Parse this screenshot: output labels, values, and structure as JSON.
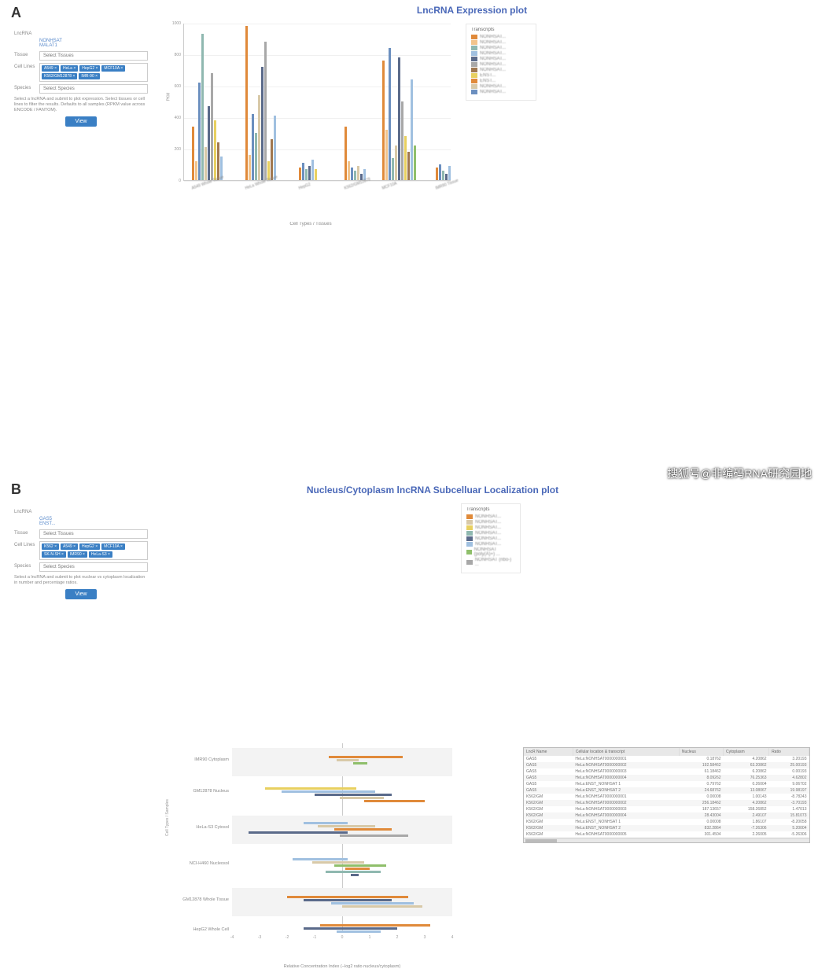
{
  "palette": {
    "orange": "#e08a3a",
    "lightorange": "#f2c48c",
    "blue": "#6b8fbf",
    "teal": "#8fb8b0",
    "beige": "#d8c9a8",
    "navy": "#5a6a8a",
    "gray": "#a8a8a8",
    "yellow": "#e8d060",
    "brown": "#a07850",
    "sky": "#a0c0e0",
    "green": "#8fbf6b",
    "legend_border": "#e8e8e8"
  },
  "panelA": {
    "label": "A",
    "title": "LncRNA Expression plot",
    "sidebar": {
      "lncrna_label": "LncRNA",
      "lncrna_links": [
        "NONHSAT",
        "MALAT1"
      ],
      "tissue_label": "Tissue",
      "tissue_placeholder": "Select Tissues",
      "chips_label": "Cell Lines",
      "chips": [
        "A549 ×",
        "HeLa ×",
        "HepG2 ×",
        "MCF10A ×",
        "K562/GM12878 ×",
        "IMR-90 ×"
      ],
      "species_label": "Species",
      "species_placeholder": "Select Species",
      "note": "Select a lncRNA and submit to plot expression. Select tissues or cell lines to filter the results. Defaults to all samples (RPKM value across ENCODE / FANTOM).",
      "button": "View"
    },
    "chart": {
      "type": "bar",
      "ylabel": "PKM",
      "yticks": [
        0,
        200,
        400,
        600,
        800,
        1000
      ],
      "ymax": 1000,
      "xaxis_title": "Cell Types / Tissues",
      "categories": [
        "A549 Whole Tissue",
        "HeLa Whole Tissue",
        "HepG2",
        "K562/GM12878",
        "MCF10A",
        "IMR90 Tissue"
      ],
      "groups": [
        {
          "x": 10,
          "bars": [
            [
              "orange",
              340
            ],
            [
              "lightorange",
              120
            ],
            [
              "blue",
              620
            ],
            [
              "teal",
              930
            ],
            [
              "beige",
              210
            ],
            [
              "navy",
              470
            ],
            [
              "gray",
              680
            ],
            [
              "yellow",
              380
            ],
            [
              "brown",
              240
            ],
            [
              "sky",
              150
            ]
          ]
        },
        {
          "x": 78,
          "bars": [
            [
              "orange",
              980
            ],
            [
              "lightorange",
              160
            ],
            [
              "blue",
              420
            ],
            [
              "teal",
              300
            ],
            [
              "beige",
              540
            ],
            [
              "navy",
              720
            ],
            [
              "gray",
              880
            ],
            [
              "yellow",
              120
            ],
            [
              "brown",
              260
            ],
            [
              "sky",
              410
            ]
          ]
        },
        {
          "x": 146,
          "bars": [
            [
              "orange",
              80
            ],
            [
              "blue",
              110
            ],
            [
              "teal",
              70
            ],
            [
              "navy",
              90
            ],
            [
              "sky",
              130
            ],
            [
              "yellow",
              70
            ]
          ]
        },
        {
          "x": 204,
          "bars": [
            [
              "orange",
              340
            ],
            [
              "lightorange",
              120
            ],
            [
              "blue",
              80
            ],
            [
              "teal",
              60
            ],
            [
              "beige",
              90
            ],
            [
              "navy",
              40
            ],
            [
              "sky",
              70
            ]
          ]
        },
        {
          "x": 252,
          "bars": [
            [
              "orange",
              760
            ],
            [
              "lightorange",
              320
            ],
            [
              "blue",
              840
            ],
            [
              "teal",
              140
            ],
            [
              "beige",
              220
            ],
            [
              "navy",
              780
            ],
            [
              "gray",
              500
            ],
            [
              "yellow",
              280
            ],
            [
              "brown",
              180
            ],
            [
              "sky",
              640
            ],
            [
              "green",
              220
            ]
          ]
        },
        {
          "x": 320,
          "bars": [
            [
              "orange",
              80
            ],
            [
              "blue",
              100
            ],
            [
              "teal",
              60
            ],
            [
              "navy",
              40
            ],
            [
              "sky",
              90
            ]
          ]
        }
      ]
    },
    "legend": {
      "title": "Transcripts",
      "items": [
        [
          "orange",
          "NONHSAT..."
        ],
        [
          "lightorange",
          "NONHSAT..."
        ],
        [
          "teal",
          "NONHSAT..."
        ],
        [
          "sky",
          "NONHSAT..."
        ],
        [
          "navy",
          "NONHSAT..."
        ],
        [
          "gray",
          "NONHSAT..."
        ],
        [
          "brown",
          "NONHSAT..."
        ],
        [
          "yellow",
          "ENST..."
        ],
        [
          "orange",
          "ENST..."
        ],
        [
          "beige",
          "NONHSAT..."
        ],
        [
          "blue",
          "NONHSAT..."
        ]
      ]
    }
  },
  "panelB": {
    "label": "B",
    "title": "Nucleus/Cytoplasm lncRNA Subcelluar Localization plot",
    "sidebar": {
      "lncrna_label": "LncRNA",
      "lncrna_links": [
        "GAS5",
        "ENST..."
      ],
      "tissue_label": "Tissue",
      "tissue_placeholder": "Select Tissues",
      "chips_label": "Cell Lines",
      "chips": [
        "K562 ×",
        "A549 ×",
        "HepG2 ×",
        "MCF10A ×",
        "SK-N-SH ×",
        "IMR90 ×",
        "HeLa-S3 ×"
      ],
      "species_label": "Species",
      "species_placeholder": "Select Species",
      "note": "Select a lncRNA and submit to plot nuclear vs cytoplasm localization in number and percentage ratios.",
      "button": "View"
    },
    "chart": {
      "type": "diverging-hbar",
      "ylabel": "Cell Types / Samples",
      "xaxis_title": "Relative Concentration Index (−log2 ratio nucleus/cytoplasm)",
      "xticks": [
        -4,
        -3,
        -2,
        -1,
        0,
        1,
        2,
        3,
        4
      ],
      "categories": [
        "IMR90 Cytoplasm",
        "GM12878 Nucleus",
        "HeLa-S3 Cytosol",
        "NCI-H460 Nucleosol",
        "GM12878 Whole Tissue",
        "HepG2 Whole Cell"
      ],
      "rows": [
        {
          "y": 10,
          "bars": [
            [
              "orange",
              -0.5,
              2.2,
              6
            ],
            [
              "beige",
              -0.2,
              0.6,
              10
            ],
            [
              "green",
              0.4,
              0.9,
              14
            ]
          ]
        },
        {
          "y": 50,
          "bars": [
            [
              "yellow",
              -2.8,
              0.5,
              6
            ],
            [
              "sky",
              -2.2,
              1.2,
              10
            ],
            [
              "navy",
              -1.0,
              1.8,
              14
            ],
            [
              "beige",
              -0.1,
              1.5,
              18
            ],
            [
              "orange",
              0.8,
              3.0,
              22
            ]
          ]
        },
        {
          "y": 96,
          "bars": [
            [
              "sky",
              -1.4,
              0.2,
              4
            ],
            [
              "beige",
              -0.9,
              1.2,
              8
            ],
            [
              "orange",
              -0.3,
              1.8,
              12
            ],
            [
              "navy",
              -3.4,
              0.2,
              16
            ],
            [
              "gray",
              -0.1,
              2.4,
              20
            ]
          ]
        },
        {
          "y": 142,
          "bars": [
            [
              "sky",
              -1.8,
              0.2,
              4
            ],
            [
              "beige",
              -1.1,
              0.8,
              8
            ],
            [
              "green",
              -0.3,
              1.6,
              12
            ],
            [
              "orange",
              0.1,
              1.0,
              16
            ],
            [
              "teal",
              -0.6,
              1.4,
              20
            ],
            [
              "navy",
              0.3,
              0.6,
              24
            ]
          ]
        },
        {
          "y": 188,
          "bars": [
            [
              "orange",
              -2.0,
              2.4,
              6
            ],
            [
              "navy",
              -1.4,
              1.8,
              10
            ],
            [
              "sky",
              -0.4,
              2.6,
              14
            ],
            [
              "beige",
              0.0,
              2.9,
              18
            ]
          ]
        },
        {
          "y": 226,
          "bars": [
            [
              "orange",
              -0.8,
              3.2,
              4
            ],
            [
              "navy",
              -1.4,
              2.0,
              8
            ],
            [
              "sky",
              -0.2,
              1.4,
              12
            ]
          ]
        }
      ]
    },
    "legend": {
      "title": "Transcripts",
      "items": [
        [
          "orange",
          "NONHSAT..."
        ],
        [
          "beige",
          "NONHSAT..."
        ],
        [
          "yellow",
          "NONHSAT..."
        ],
        [
          "teal",
          "NONHSAT..."
        ],
        [
          "navy",
          "NONHSAT..."
        ],
        [
          "sky",
          "NONHSAT..."
        ],
        [
          "green",
          "NONHSAT (poly(A)+) ..."
        ],
        [
          "gray",
          "NONHSAT (ribo-) ..."
        ]
      ]
    },
    "table": {
      "columns": [
        "LncR Name",
        "Cellular location & transcript",
        "Nucleus",
        "Cytoplasm",
        "Ratio"
      ],
      "rows": [
        [
          "GAS5",
          "HeLa:NONHSAT0000000001",
          "0.18762",
          "4.20862",
          "3.20193"
        ],
        [
          "GAS5",
          "HeLa:NONHSAT0000000002",
          "192.58462",
          "63.20862",
          "25.00193"
        ],
        [
          "GAS5",
          "HeLa:NONHSAT0000000003",
          "61.18462",
          "6.20862",
          "0.00193"
        ],
        [
          "GAS5",
          "HeLa:NONHSAT0000000004",
          "8.09262",
          "76.25363",
          "4.62802"
        ],
        [
          "GAS5",
          "HeLa:ENST_NONHSAT 1",
          "0.79762",
          "0.26004",
          "9.06702"
        ],
        [
          "GAS5",
          "HeLa:ENST_NONHSAT 2",
          "24.68762",
          "13.08067",
          "19.98197"
        ],
        [
          "K562/GM",
          "HeLa:NONHSAT0000000001",
          "0.00008",
          "1.00143",
          "-8.78243"
        ],
        [
          "K562/GM",
          "HeLa:NONHSAT0000000002",
          "256.18462",
          "4.20862",
          "-3.70193"
        ],
        [
          "K562/GM",
          "HeLa:NONHSAT0000000003",
          "187.13657",
          "158.26852",
          "1.47013"
        ],
        [
          "K562/GM",
          "HeLa:NONHSAT0000000004",
          "28.43004",
          "2.49107",
          "15.81073"
        ],
        [
          "K562/GM",
          "HeLa:ENST_NONHSAT 1",
          "0.00008",
          "1.86107",
          "-8.20058"
        ],
        [
          "K562/GM",
          "HeLa:ENST_NONHSAT 2",
          "832.2864",
          "-7.26306",
          "5.20004"
        ],
        [
          "K562/GM",
          "HeLa:NONHSAT0000000005",
          "301.4504",
          "2.26005",
          "-5.26306"
        ]
      ]
    }
  },
  "watermark": "搜狐号@非编码RNA研究园地"
}
